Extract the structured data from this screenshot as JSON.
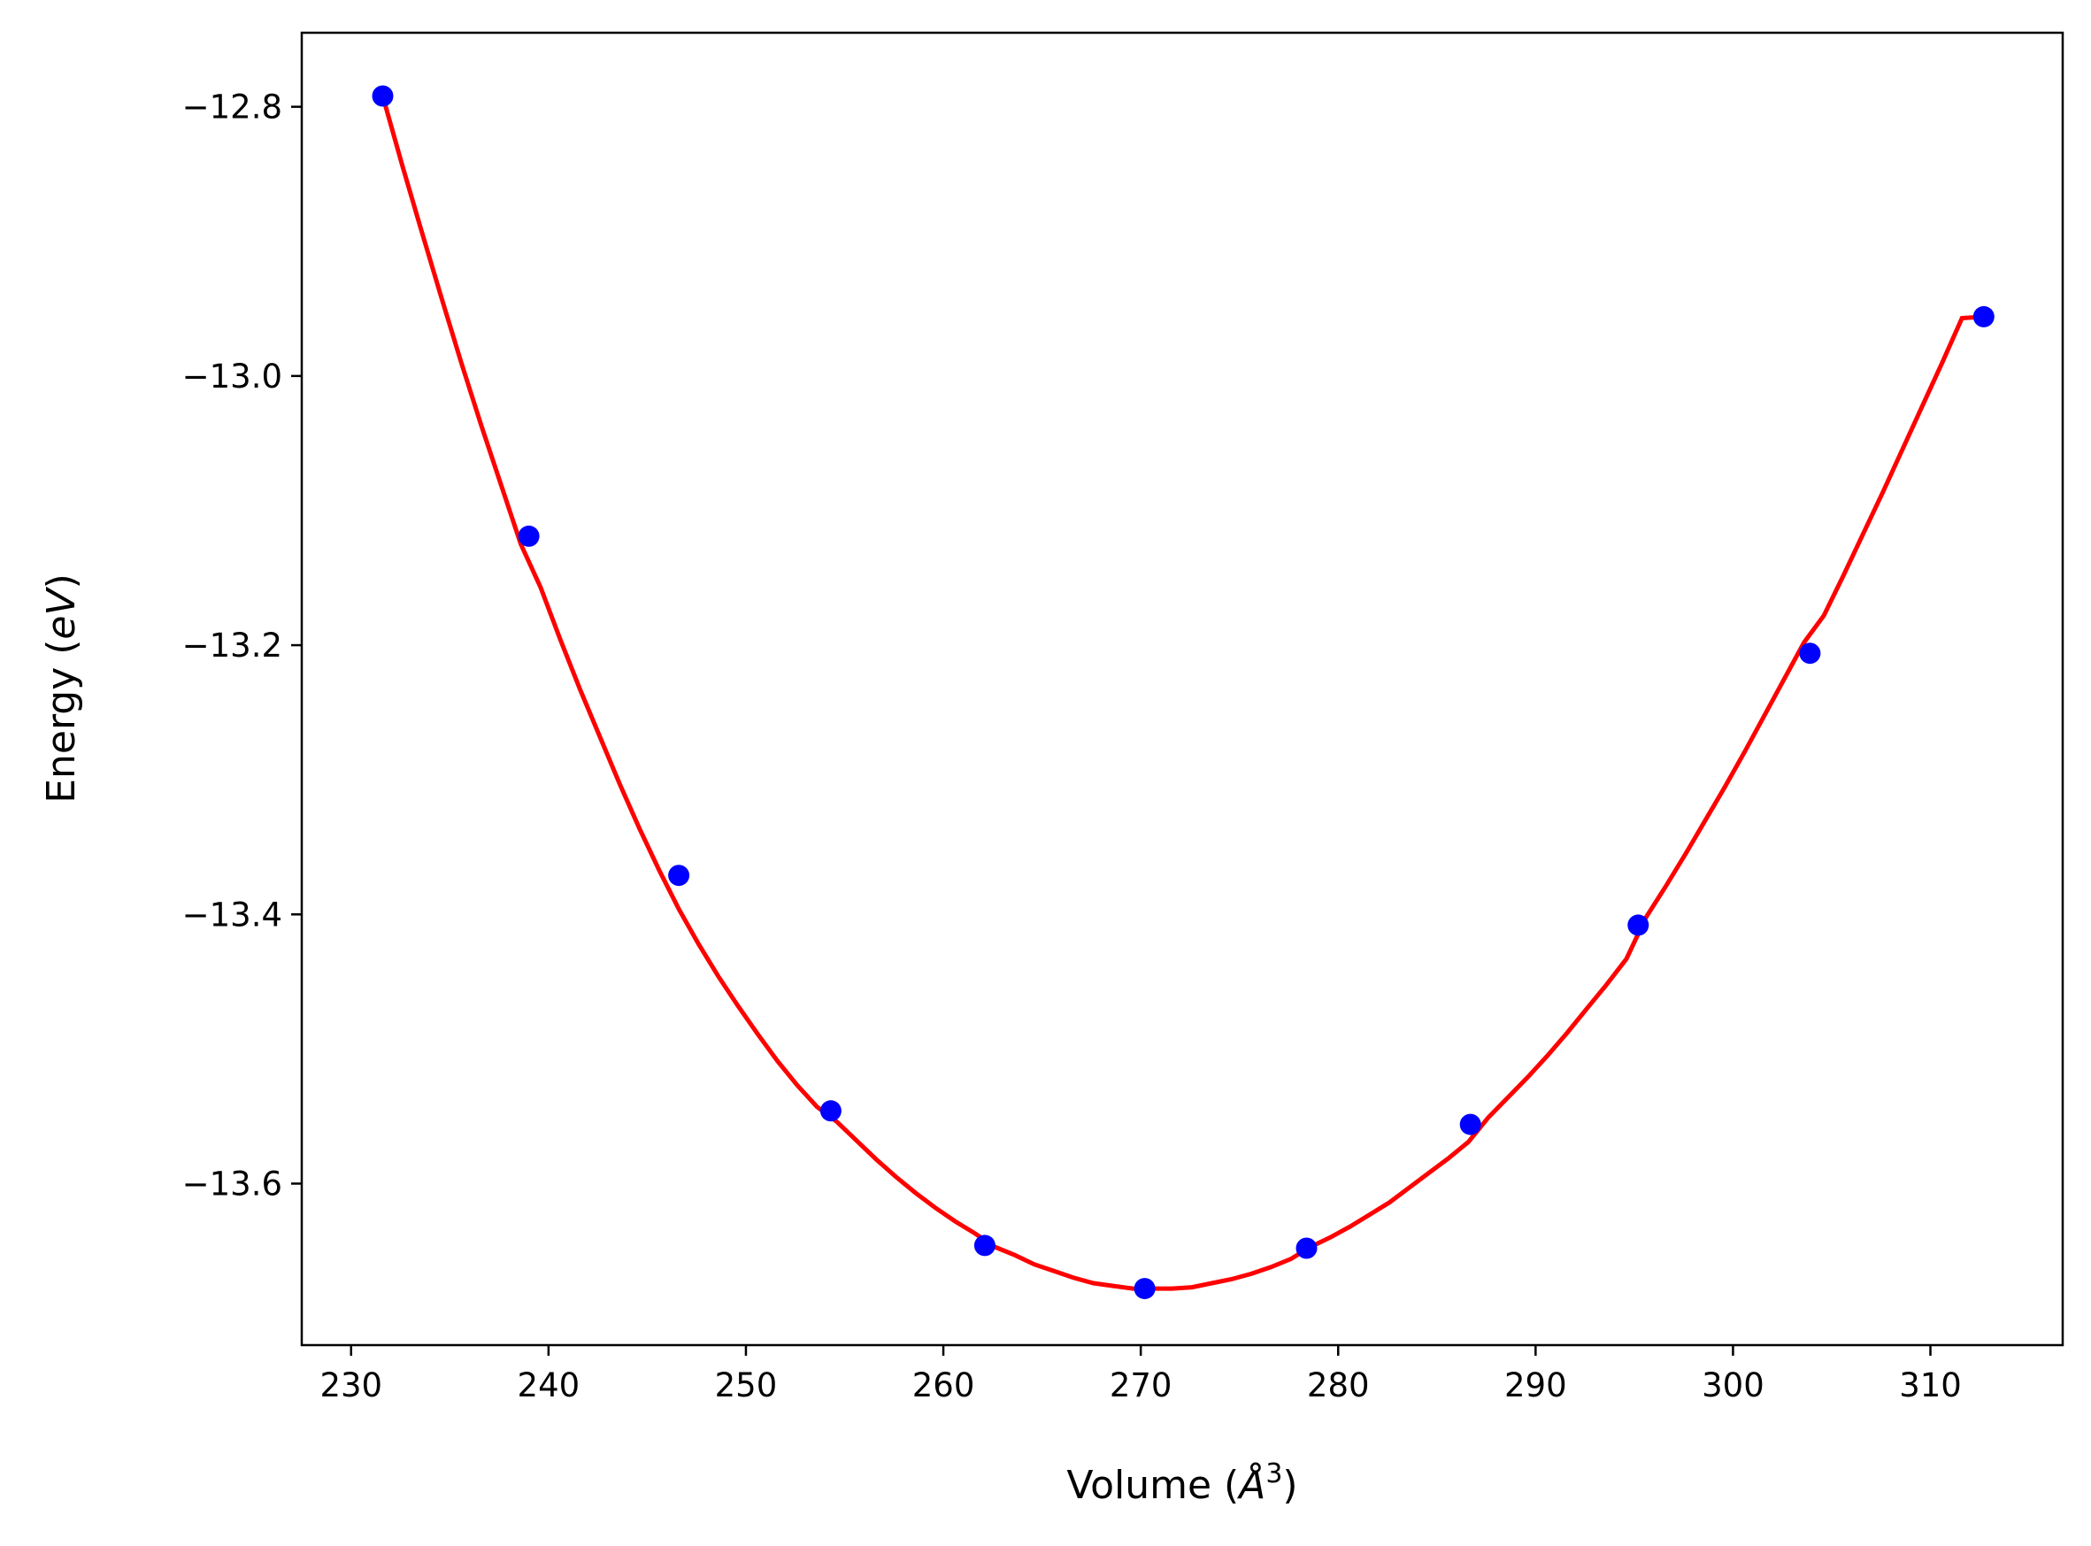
{
  "chart_data": {
    "type": "scatter",
    "title": "",
    "xlabel": "Volume (",
    "xlabel_symbol": "Å",
    "xlabel_exp": "3",
    "xlabel_close": ")",
    "ylabel": "Energy (",
    "ylabel_unit": "eV",
    "ylabel_close": ")",
    "xlim": [
      227.5,
      316.7
    ],
    "ylim": [
      -13.72,
      -12.745
    ],
    "xticks": [
      230,
      240,
      250,
      260,
      270,
      280,
      290,
      300,
      310
    ],
    "xtick_labels": [
      "230",
      "240",
      "250",
      "260",
      "270",
      "280",
      "290",
      "300",
      "310"
    ],
    "yticks": [
      -13.6,
      -13.4,
      -13.2,
      -13.0,
      -12.8
    ],
    "ytick_labels": [
      "−13.6",
      "−13.4",
      "−13.2",
      "−13.0",
      "−12.8"
    ],
    "grid": false,
    "series": [
      {
        "kind": "points",
        "color": "#0000ff",
        "x": [
          231.6,
          239.0,
          246.6,
          254.3,
          262.1,
          270.2,
          278.4,
          286.7,
          295.2,
          303.9,
          312.7
        ],
        "y": [
          -12.792,
          -13.119,
          -13.371,
          -13.546,
          -13.646,
          -13.678,
          -13.648,
          -13.556,
          -13.408,
          -13.206,
          -12.956
        ]
      },
      {
        "kind": "fit-line",
        "color": "#ff0000",
        "x": [
          231.6,
          232.6,
          233.6,
          234.6,
          235.6,
          236.6,
          237.6,
          238.6,
          239.6,
          240.6,
          241.6,
          242.6,
          243.6,
          244.6,
          245.6,
          246.6,
          247.6,
          248.6,
          249.6,
          250.6,
          251.6,
          252.6,
          253.6,
          254.6,
          255.6,
          256.6,
          257.6,
          258.6,
          259.6,
          260.6,
          261.6,
          262.6,
          263.6,
          264.6,
          265.6,
          266.6,
          267.6,
          268.6,
          269.6,
          270.6,
          271.6,
          272.6,
          273.6,
          274.6,
          275.6,
          276.6,
          277.6,
          278.6,
          279.6,
          280.6,
          281.6,
          282.6,
          283.6,
          284.6,
          285.6,
          286.6,
          287.6,
          288.6,
          289.6,
          290.6,
          291.6,
          292.6,
          293.6,
          294.6,
          295.6,
          296.6,
          297.6,
          298.6,
          299.6,
          300.6,
          301.6,
          302.6,
          303.6,
          304.6,
          305.6,
          306.6,
          307.6,
          308.6,
          309.6,
          310.6,
          311.6,
          312.7
        ],
        "y": [
          -12.792,
          -12.844,
          -12.894,
          -12.943,
          -12.991,
          -13.037,
          -13.081,
          -13.125,
          -13.157,
          -13.196,
          -13.233,
          -13.268,
          -13.303,
          -13.336,
          -13.367,
          -13.396,
          -13.422,
          -13.446,
          -13.468,
          -13.489,
          -13.509,
          -13.527,
          -13.543,
          -13.554,
          -13.568,
          -13.582,
          -13.595,
          -13.607,
          -13.618,
          -13.628,
          -13.637,
          -13.647,
          -13.653,
          -13.66,
          -13.665,
          -13.67,
          -13.674,
          -13.676,
          -13.678,
          -13.678,
          -13.678,
          -13.677,
          -13.674,
          -13.671,
          -13.667,
          -13.662,
          -13.656,
          -13.647,
          -13.64,
          -13.632,
          -13.623,
          -13.614,
          -13.603,
          -13.592,
          -13.581,
          -13.569,
          -13.551,
          -13.536,
          -13.521,
          -13.505,
          -13.488,
          -13.47,
          -13.452,
          -13.433,
          -13.402,
          -13.379,
          -13.355,
          -13.33,
          -13.305,
          -13.279,
          -13.252,
          -13.225,
          -13.198,
          -13.178,
          -13.148,
          -13.117,
          -13.086,
          -13.054,
          -13.022,
          -12.99,
          -12.957,
          -12.956
        ]
      }
    ]
  }
}
